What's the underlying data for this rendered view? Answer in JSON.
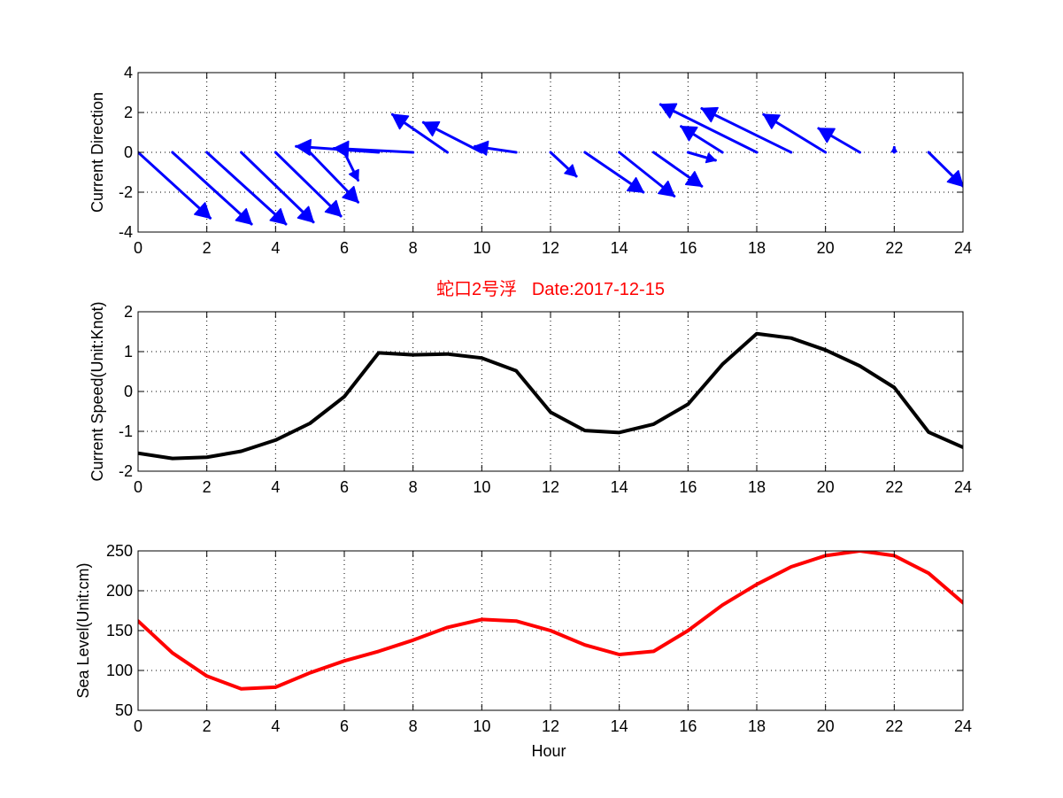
{
  "colors": {
    "arrows": "#0000ff",
    "speed": "#000000",
    "sea_level": "#ff0000",
    "title": "#ff0000",
    "grid": "#000000",
    "axes": "#000000"
  },
  "figure_title": "蛇口2号浮   Date:2017-12-15",
  "chart_data": [
    {
      "type": "quiver",
      "title": "",
      "xlabel": "",
      "ylabel": "Current Direction",
      "xlim": [
        0,
        24
      ],
      "ylim": [
        -4,
        4
      ],
      "xticks": [
        0,
        2,
        4,
        6,
        8,
        10,
        12,
        14,
        16,
        18,
        20,
        22,
        24
      ],
      "yticks": [
        4,
        2,
        0,
        -2,
        -4
      ],
      "grid": true,
      "arrows": [
        {
          "x": 0,
          "y": 0,
          "u": 2.1,
          "v": -3.3
        },
        {
          "x": 1,
          "y": 0,
          "u": 2.3,
          "v": -3.6
        },
        {
          "x": 2,
          "y": 0,
          "u": 2.3,
          "v": -3.6
        },
        {
          "x": 3,
          "y": 0,
          "u": 2.1,
          "v": -3.5
        },
        {
          "x": 4,
          "y": 0,
          "u": 1.9,
          "v": -3.2
        },
        {
          "x": 5,
          "y": 0,
          "u": 1.4,
          "v": -2.5
        },
        {
          "x": 6,
          "y": 0,
          "u": 0.4,
          "v": -1.4
        },
        {
          "x": 7,
          "y": 0,
          "u": -2.4,
          "v": 0.3
        },
        {
          "x": 8,
          "y": 0,
          "u": -2.3,
          "v": 0.2
        },
        {
          "x": 9,
          "y": 0,
          "u": -1.6,
          "v": 1.9
        },
        {
          "x": 10,
          "y": 0,
          "u": -1.7,
          "v": 1.5
        },
        {
          "x": 11,
          "y": 0,
          "u": -1.2,
          "v": 0.3
        },
        {
          "x": 12,
          "y": 0,
          "u": 0.75,
          "v": -1.2
        },
        {
          "x": 13,
          "y": 0,
          "u": 1.7,
          "v": -2.0
        },
        {
          "x": 14,
          "y": 0,
          "u": 1.6,
          "v": -2.2
        },
        {
          "x": 15,
          "y": 0,
          "u": 1.4,
          "v": -1.7
        },
        {
          "x": 16,
          "y": 0,
          "u": 0.8,
          "v": -0.4
        },
        {
          "x": 17,
          "y": 0,
          "u": -1.2,
          "v": 1.3
        },
        {
          "x": 18,
          "y": 0,
          "u": -2.8,
          "v": 2.4
        },
        {
          "x": 19,
          "y": 0,
          "u": -2.6,
          "v": 2.2
        },
        {
          "x": 20,
          "y": 0,
          "u": -1.8,
          "v": 1.9
        },
        {
          "x": 21,
          "y": 0,
          "u": -1.2,
          "v": 1.2
        },
        {
          "x": 22,
          "y": 0,
          "u": 0.0,
          "v": 0.25
        },
        {
          "x": 23,
          "y": 0,
          "u": 1.0,
          "v": -1.7
        }
      ]
    },
    {
      "type": "line",
      "title": "蛇口2号浮   Date:2017-12-15",
      "xlabel": "",
      "ylabel": "Current Speed(Unit:Knot)",
      "xlim": [
        0,
        24
      ],
      "ylim": [
        -2,
        2
      ],
      "xticks": [
        0,
        2,
        4,
        6,
        8,
        10,
        12,
        14,
        16,
        18,
        20,
        22,
        24
      ],
      "yticks": [
        2,
        1,
        0,
        -1,
        -2
      ],
      "grid": true,
      "x": [
        0,
        1,
        2,
        3,
        4,
        5,
        6,
        7,
        8,
        9,
        10,
        11,
        12,
        13,
        14,
        15,
        16,
        17,
        18,
        19,
        20,
        21,
        22,
        23,
        24
      ],
      "series": [
        {
          "values": [
            -1.55,
            -1.68,
            -1.65,
            -1.5,
            -1.22,
            -0.8,
            -0.13,
            0.97,
            0.92,
            0.94,
            0.84,
            0.52,
            -0.52,
            -0.98,
            -1.03,
            -0.82,
            -0.32,
            0.68,
            1.45,
            1.34,
            1.04,
            0.64,
            0.1,
            -1.02,
            -1.4
          ]
        }
      ]
    },
    {
      "type": "line",
      "title": "",
      "xlabel": "Hour",
      "ylabel": "Sea Level(Unit:cm)",
      "xlim": [
        0,
        24
      ],
      "ylim": [
        50,
        250
      ],
      "xticks": [
        0,
        2,
        4,
        6,
        8,
        10,
        12,
        14,
        16,
        18,
        20,
        22,
        24
      ],
      "yticks": [
        250,
        200,
        150,
        100,
        50
      ],
      "grid": true,
      "x": [
        0,
        1,
        2,
        3,
        4,
        5,
        6,
        7,
        8,
        9,
        10,
        11,
        12,
        13,
        14,
        15,
        16,
        17,
        18,
        19,
        20,
        21,
        22,
        23,
        24
      ],
      "series": [
        {
          "values": [
            162,
            122,
            93,
            77,
            79,
            97,
            112,
            124,
            138,
            154,
            164,
            162,
            150,
            132,
            120,
            124,
            150,
            182,
            208,
            230,
            244,
            250,
            244,
            222,
            185
          ]
        }
      ]
    }
  ]
}
